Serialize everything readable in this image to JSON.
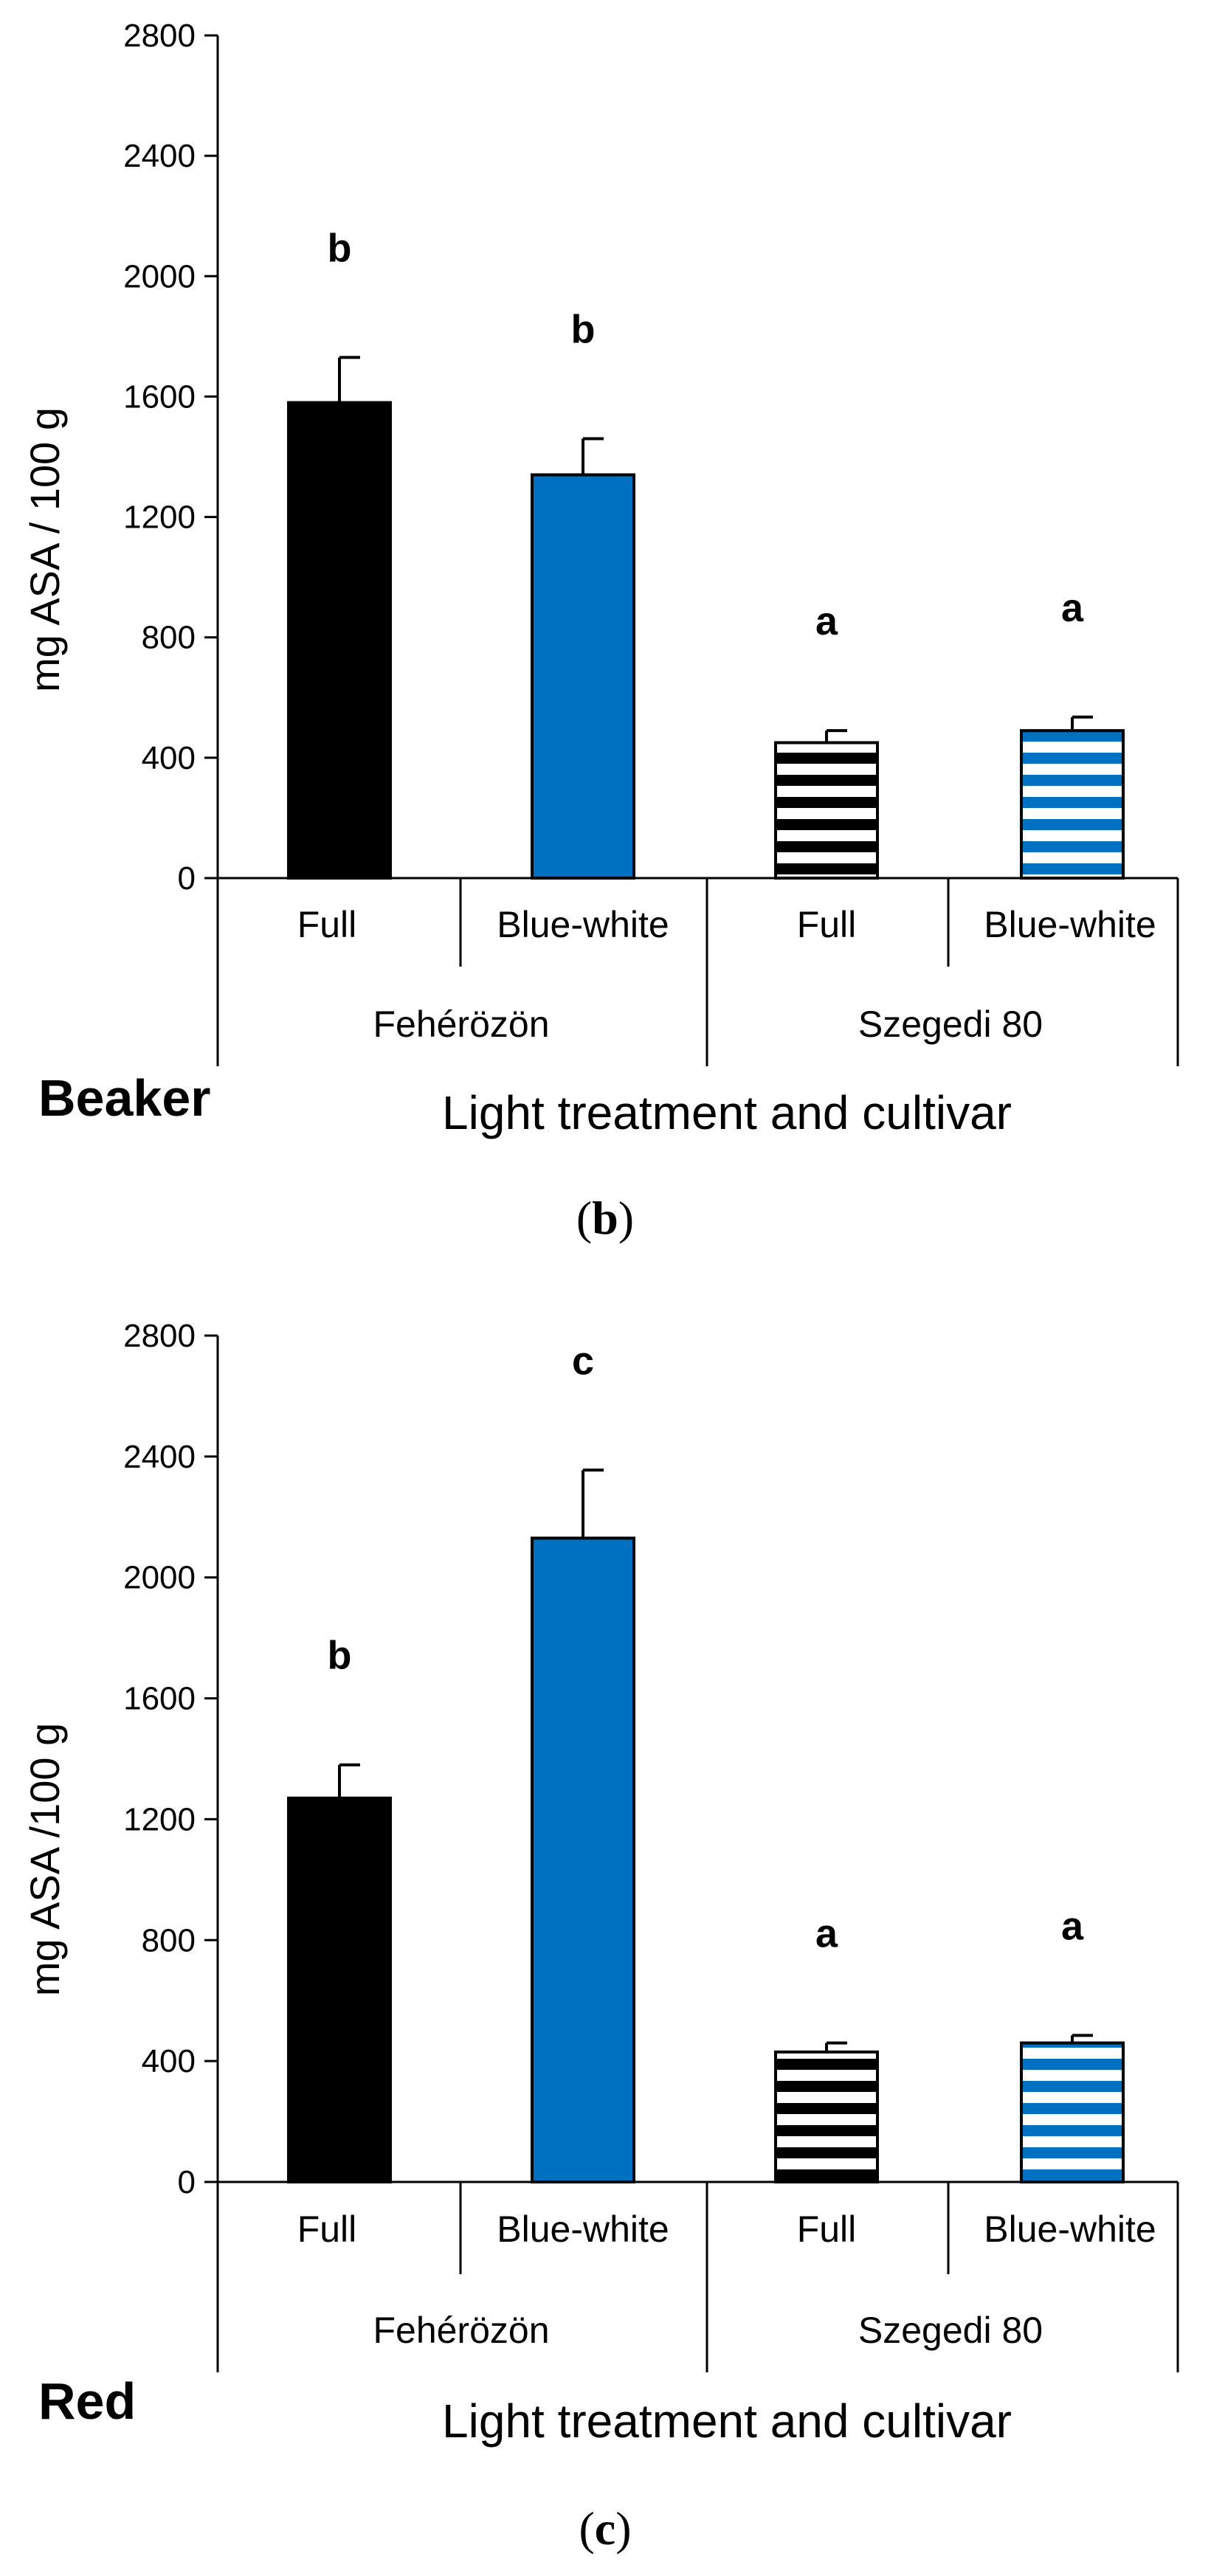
{
  "colors": {
    "black": "#000000",
    "blue": "#0070c0",
    "white": "#ffffff"
  },
  "chart_data": [
    {
      "type": "bar",
      "panel": "b",
      "corner_label": "Beaker",
      "xlabel": "Light treatment and cultivar",
      "ylabel": "mg ASA / 100 g",
      "ylim": [
        0,
        2800
      ],
      "yticks": [
        0,
        400,
        800,
        1200,
        1600,
        2000,
        2400,
        2800
      ],
      "groups": [
        "Fehérözön",
        "Szegedi 80"
      ],
      "categories": [
        "Full",
        "Blue-white",
        "Full",
        "Blue-white"
      ],
      "values": [
        1580,
        1340,
        450,
        490
      ],
      "errors": [
        150,
        120,
        40,
        45
      ],
      "significance": [
        "b",
        "b",
        "a",
        "a"
      ],
      "fills": [
        "solid-black",
        "solid-blue",
        "stripe-black",
        "stripe-blue"
      ]
    },
    {
      "type": "bar",
      "panel": "c",
      "corner_label": "Red",
      "xlabel": "Light treatment and cultivar",
      "ylabel": "mg ASA /100 g",
      "ylim": [
        0,
        2800
      ],
      "yticks": [
        0,
        400,
        800,
        1200,
        1600,
        2000,
        2400,
        2800
      ],
      "groups": [
        "Fehérözön",
        "Szegedi 80"
      ],
      "categories": [
        "Full",
        "Blue-white",
        "Full",
        "Blue-white"
      ],
      "values": [
        1270,
        2130,
        430,
        460
      ],
      "errors": [
        110,
        225,
        30,
        25
      ],
      "significance": [
        "b",
        "c",
        "a",
        "a"
      ],
      "fills": [
        "solid-black",
        "solid-blue",
        "stripe-black",
        "stripe-blue"
      ]
    }
  ]
}
